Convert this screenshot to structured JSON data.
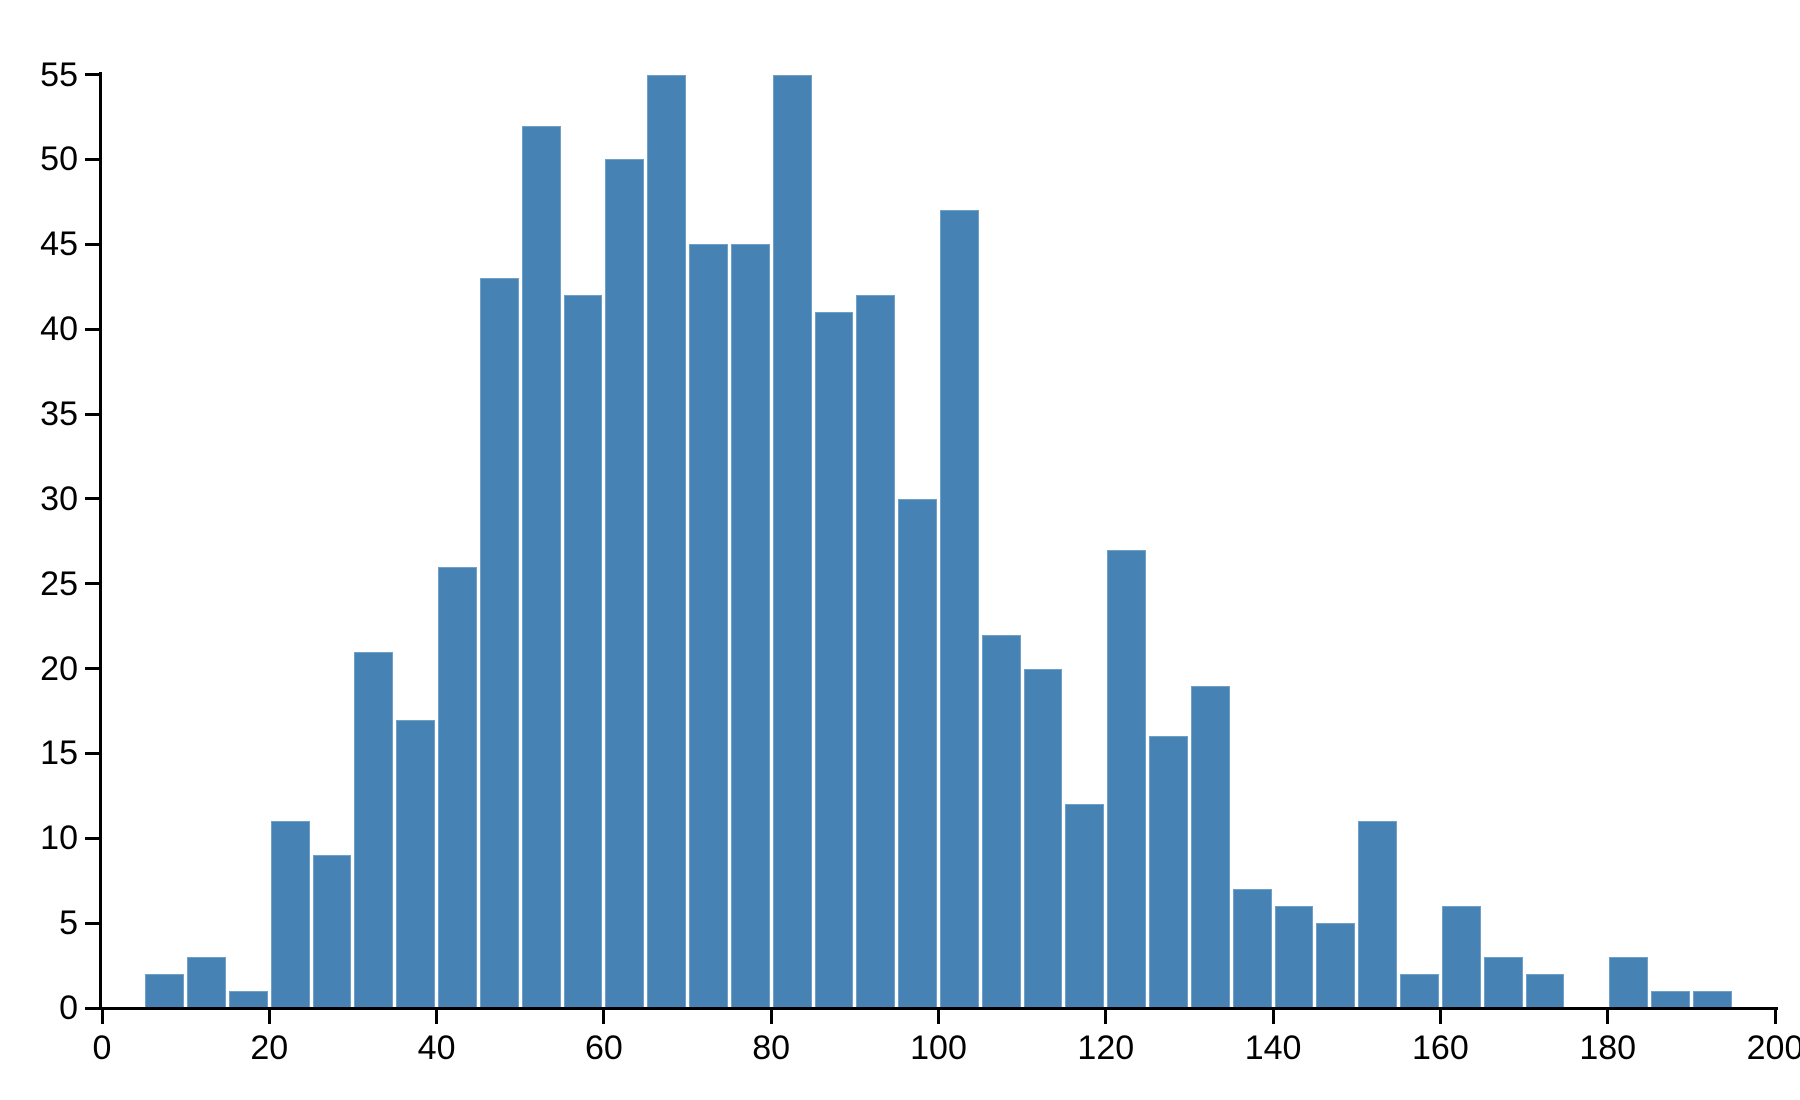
{
  "figure": {
    "background": "#ffffff",
    "axis_color": "#000000",
    "tick_label_color": "#000000"
  },
  "chart_data": {
    "type": "bar",
    "subtype": "histogram",
    "title": "",
    "xlabel": "",
    "ylabel": "",
    "grid": false,
    "legend": null,
    "bar_color": "#4682b4",
    "bar_edge_color": "#6fa0c7",
    "bar_gap_color": "#ffffff",
    "bin_start": 5,
    "bin_width": 5,
    "counts": [
      2,
      3,
      1,
      11,
      9,
      21,
      17,
      26,
      43,
      52,
      42,
      50,
      55,
      45,
      45,
      55,
      41,
      42,
      30,
      47,
      22,
      20,
      12,
      27,
      16,
      19,
      7,
      6,
      5,
      11,
      2,
      6,
      3,
      2,
      0,
      3,
      1,
      1
    ],
    "xlim": [
      0,
      200
    ],
    "ylim": [
      0,
      55
    ],
    "x_ticks": [
      0,
      20,
      40,
      60,
      80,
      100,
      120,
      140,
      160,
      180,
      200
    ],
    "y_ticks": [
      0,
      5,
      10,
      15,
      20,
      25,
      30,
      35,
      40,
      45,
      50,
      55
    ]
  }
}
